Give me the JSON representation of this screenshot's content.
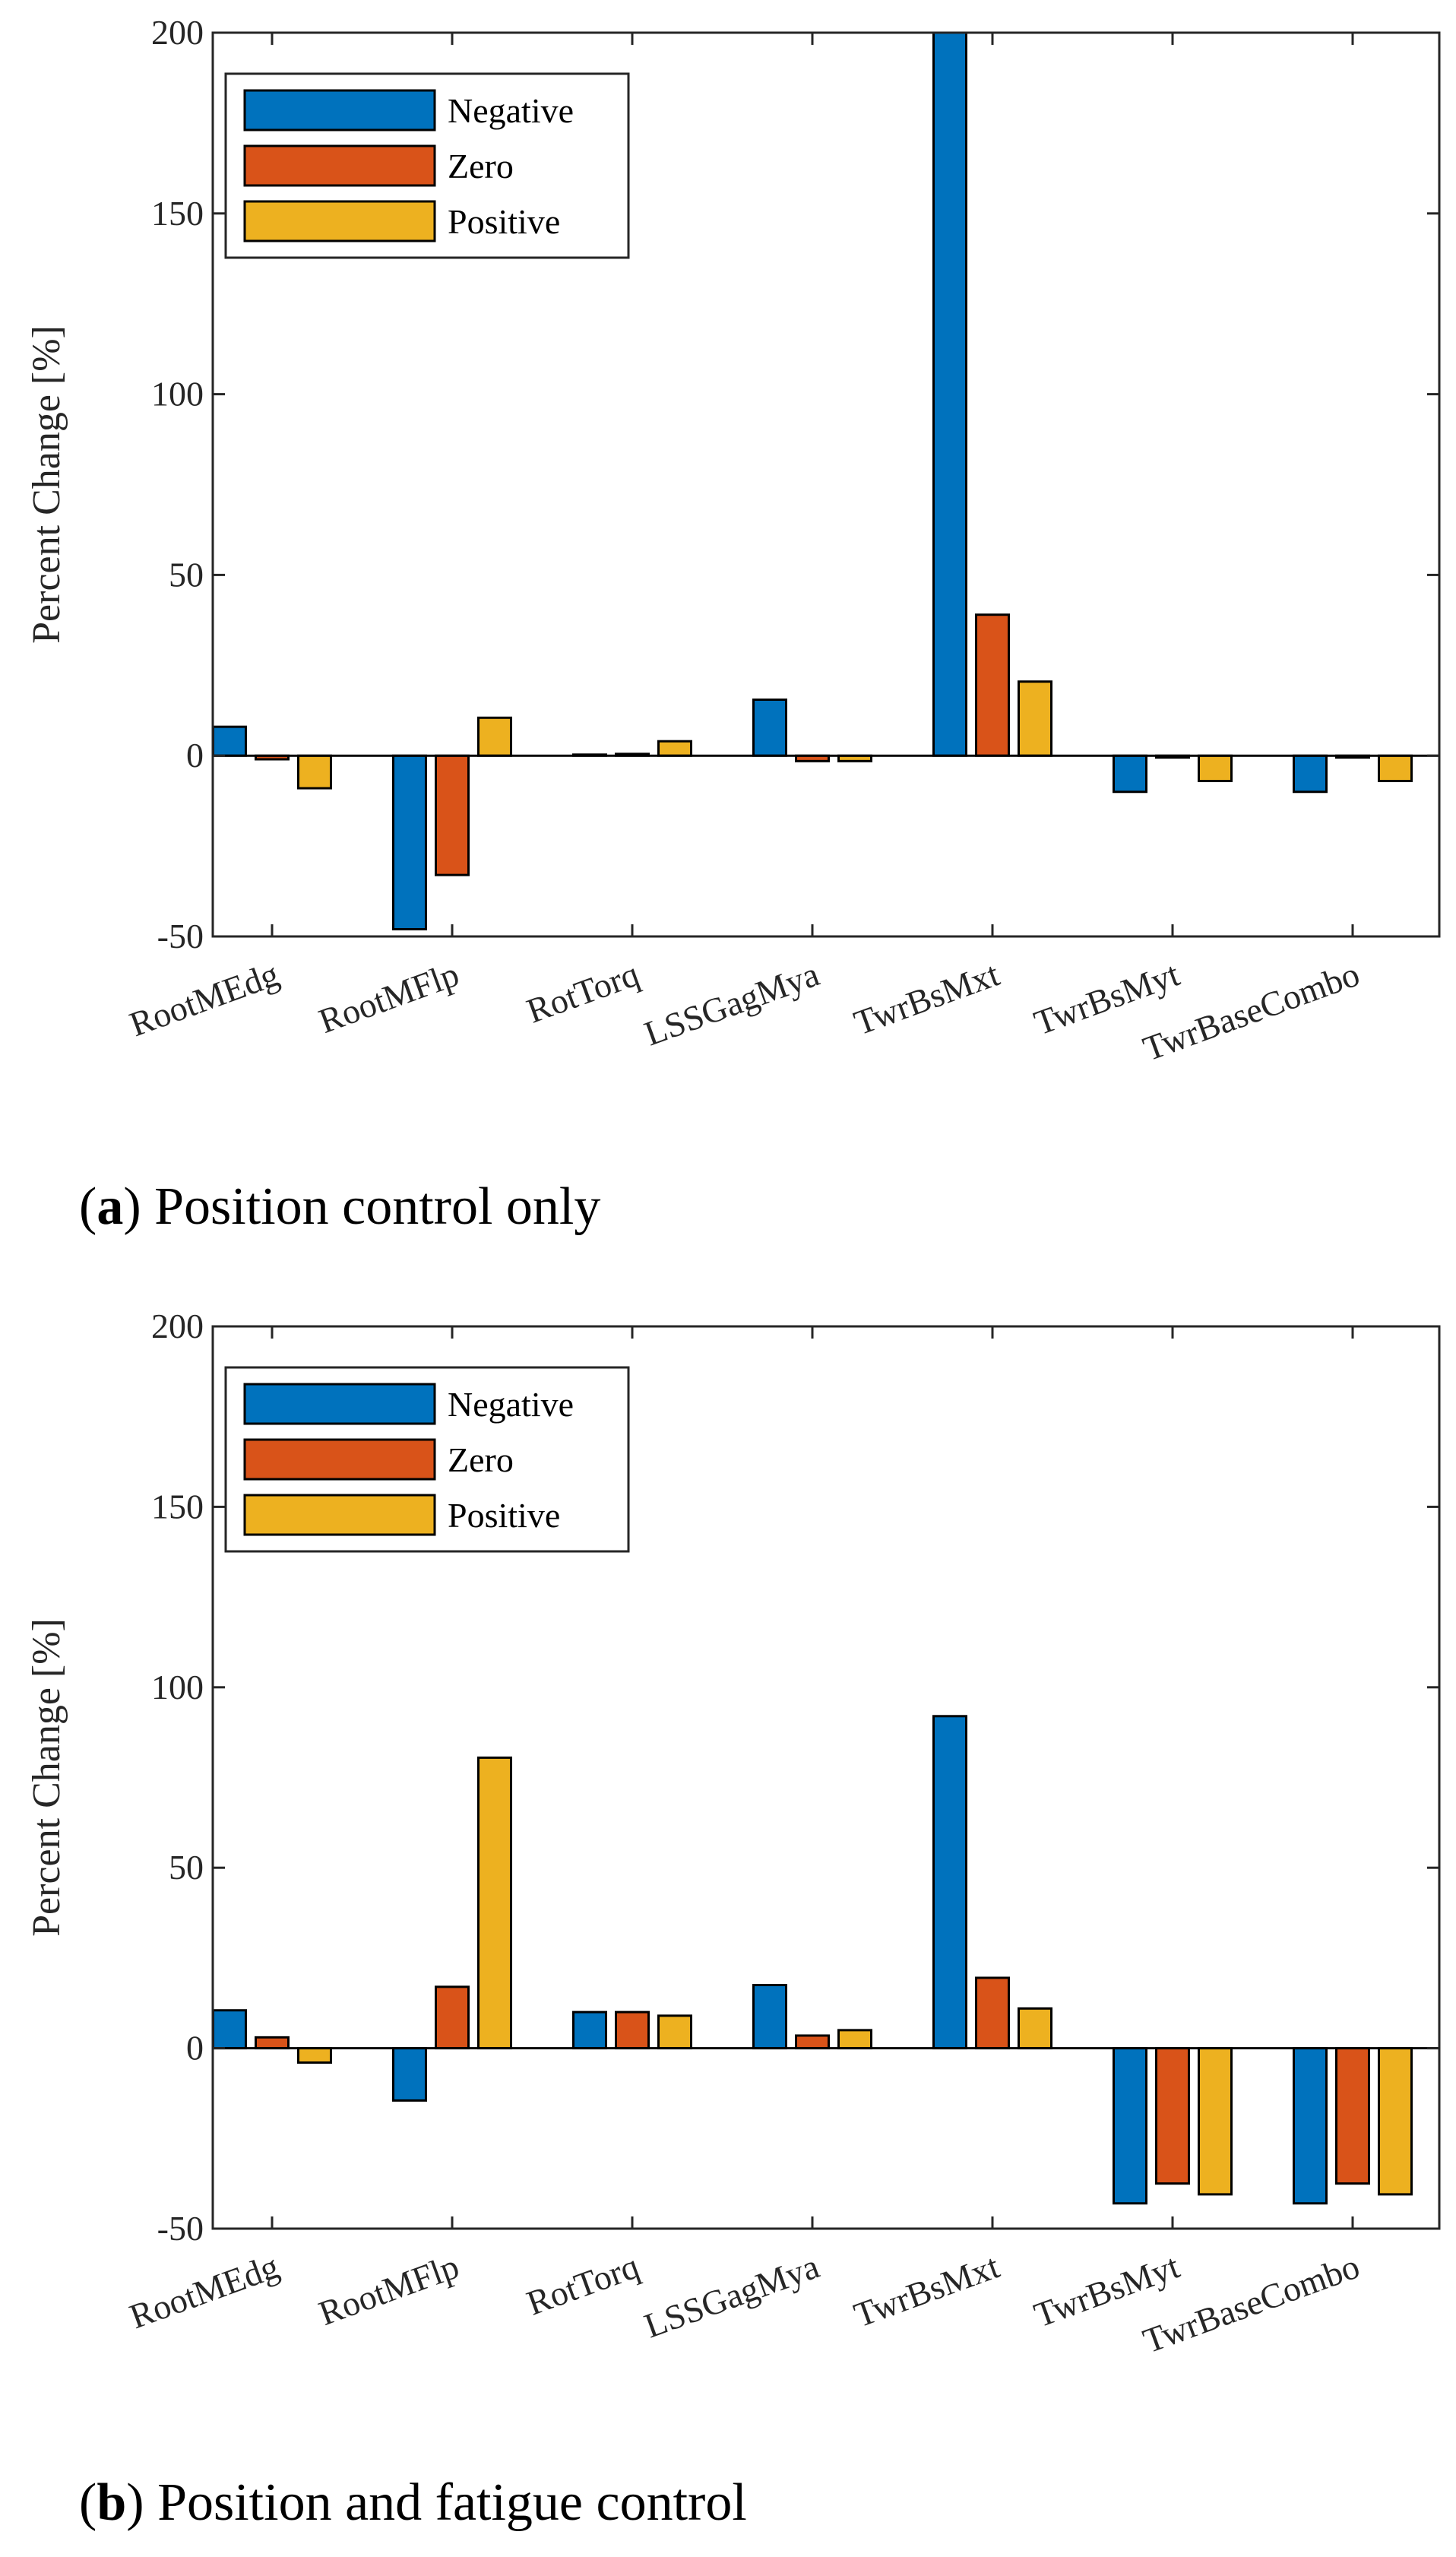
{
  "chart_data": [
    {
      "type": "bar",
      "caption": {
        "open": "(",
        "letter": "a",
        "close": ")",
        "text": " Position control only"
      },
      "categories": [
        "RootMEdg",
        "RootMFlp",
        "RotTorq",
        "LSSGagMya",
        "TwrBsMxt",
        "TwrBsMyt",
        "TwrBaseCombo"
      ],
      "series": [
        {
          "name": "Negative",
          "values": [
            8,
            -48,
            0.3,
            15.5,
            200,
            -10,
            -10
          ]
        },
        {
          "name": "Zero",
          "values": [
            -1,
            -33,
            0.5,
            -1.5,
            39,
            -0.5,
            -0.5
          ]
        },
        {
          "name": "Positive",
          "values": [
            -9,
            10.5,
            4,
            -1.5,
            20.5,
            -7,
            -7
          ]
        }
      ],
      "ylabel": "Percent Change [%]",
      "xlabel": "",
      "ylim": [
        -50,
        200
      ],
      "yticks": [
        -50,
        0,
        50,
        100,
        150,
        200
      ],
      "ytick_labels": [
        "-50",
        "0",
        "50",
        "100",
        "150",
        "200"
      ],
      "legend_position": "top-left"
    },
    {
      "type": "bar",
      "caption": {
        "open": "(",
        "letter": "b",
        "close": ")",
        "text": " Position and fatigue control"
      },
      "categories": [
        "RootMEdg",
        "RootMFlp",
        "RotTorq",
        "LSSGagMya",
        "TwrBsMxt",
        "TwrBsMyt",
        "TwrBaseCombo"
      ],
      "series": [
        {
          "name": "Negative",
          "values": [
            10.5,
            -14.5,
            10,
            17.5,
            92,
            -43,
            -43
          ]
        },
        {
          "name": "Zero",
          "values": [
            3,
            17,
            10,
            3.5,
            19.5,
            -37.5,
            -37.5
          ]
        },
        {
          "name": "Positive",
          "values": [
            -4,
            80.5,
            9,
            5,
            11,
            -40.5,
            -40.5
          ]
        }
      ],
      "ylabel": "Percent Change [%]",
      "xlabel": "",
      "ylim": [
        -50,
        200
      ],
      "yticks": [
        -50,
        0,
        50,
        100,
        150,
        200
      ],
      "ytick_labels": [
        "-50",
        "0",
        "50",
        "100",
        "150",
        "200"
      ],
      "legend_position": "top-left"
    }
  ],
  "colors": {
    "Negative": "#0072BD",
    "Zero": "#D95319",
    "Positive": "#EDB120",
    "axis": "#262626"
  }
}
